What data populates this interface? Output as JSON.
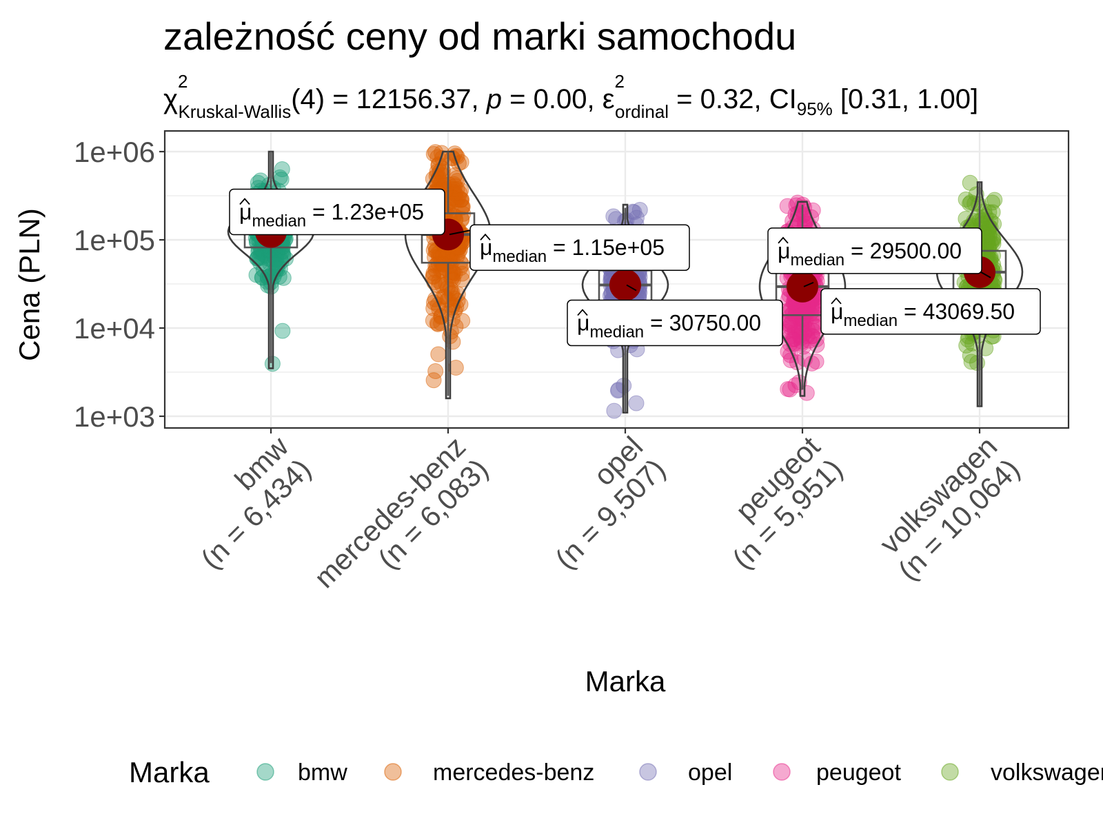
{
  "chart_data": {
    "type": "violin-box-scatter",
    "title": "zależność ceny od marki samochodu",
    "subtitle": {
      "statistic_symbol": "χ",
      "statistic_sup": "2",
      "statistic_sub": "Kruskal-Wallis",
      "df": "(4)",
      "statistic_value": "12156.37",
      "p_label": "p",
      "p_value": "0.00",
      "effect_symbol": "ε",
      "effect_sup": "2",
      "effect_sub": "ordinal",
      "effect_value": "0.32",
      "ci_label": "CI",
      "ci_sub": "95%",
      "ci_value": "[0.31, 1.00]"
    },
    "xlabel": "Marka",
    "ylabel": "Cena (PLN)",
    "y_scale": "log10",
    "ylim": [
      1000,
      1000000
    ],
    "y_ticks": [
      {
        "value": 1000,
        "label": "1e+03"
      },
      {
        "value": 10000,
        "label": "1e+04"
      },
      {
        "value": 100000,
        "label": "1e+05"
      },
      {
        "value": 1000000,
        "label": "1e+06"
      }
    ],
    "grid": true,
    "legend": {
      "title": "Marka",
      "position": "bottom",
      "items": [
        "bmw",
        "mercedes-benz",
        "opel",
        "peugeot",
        "volkswagen"
      ]
    },
    "median_label_prefix": "μ",
    "median_label_sub": "median",
    "categories": [
      {
        "name": "bmw",
        "n_label": "(n = 6,434)",
        "color": "#1B9E77",
        "median": 123000,
        "median_label": "1.23e+05",
        "q1": 82000,
        "q3": 165000,
        "whisker_low": 4000,
        "whisker_high": 1000000,
        "min": 3500,
        "max": 1000000
      },
      {
        "name": "mercedes-benz",
        "n_label": "(n = 6,083)",
        "color": "#D95F02",
        "median": 115000,
        "median_label": "1.15e+05",
        "q1": 55000,
        "q3": 200000,
        "whisker_low": 1700,
        "whisker_high": 1000000,
        "min": 1600,
        "max": 1000000
      },
      {
        "name": "opel",
        "n_label": "(n = 9,507)",
        "color": "#7570B3",
        "median": 30750,
        "median_label": "30750.00",
        "q1": 19000,
        "q3": 45000,
        "whisker_low": 1100,
        "whisker_high": 230000,
        "min": 1100,
        "max": 250000
      },
      {
        "name": "peugeot",
        "n_label": "(n = 5,951)",
        "color": "#E7298A",
        "median": 29500,
        "median_label": "29500.00",
        "q1": 14000,
        "q3": 50000,
        "whisker_low": 2000,
        "whisker_high": 250000,
        "min": 1700,
        "max": 270000
      },
      {
        "name": "volkswagen",
        "n_label": "(n = 10,064)",
        "color": "#66A61E",
        "median": 43069.5,
        "median_label": "43069.50",
        "q1": 27000,
        "q3": 75000,
        "whisker_low": 1300,
        "whisker_high": 450000,
        "min": 1300,
        "max": 450000
      }
    ]
  }
}
